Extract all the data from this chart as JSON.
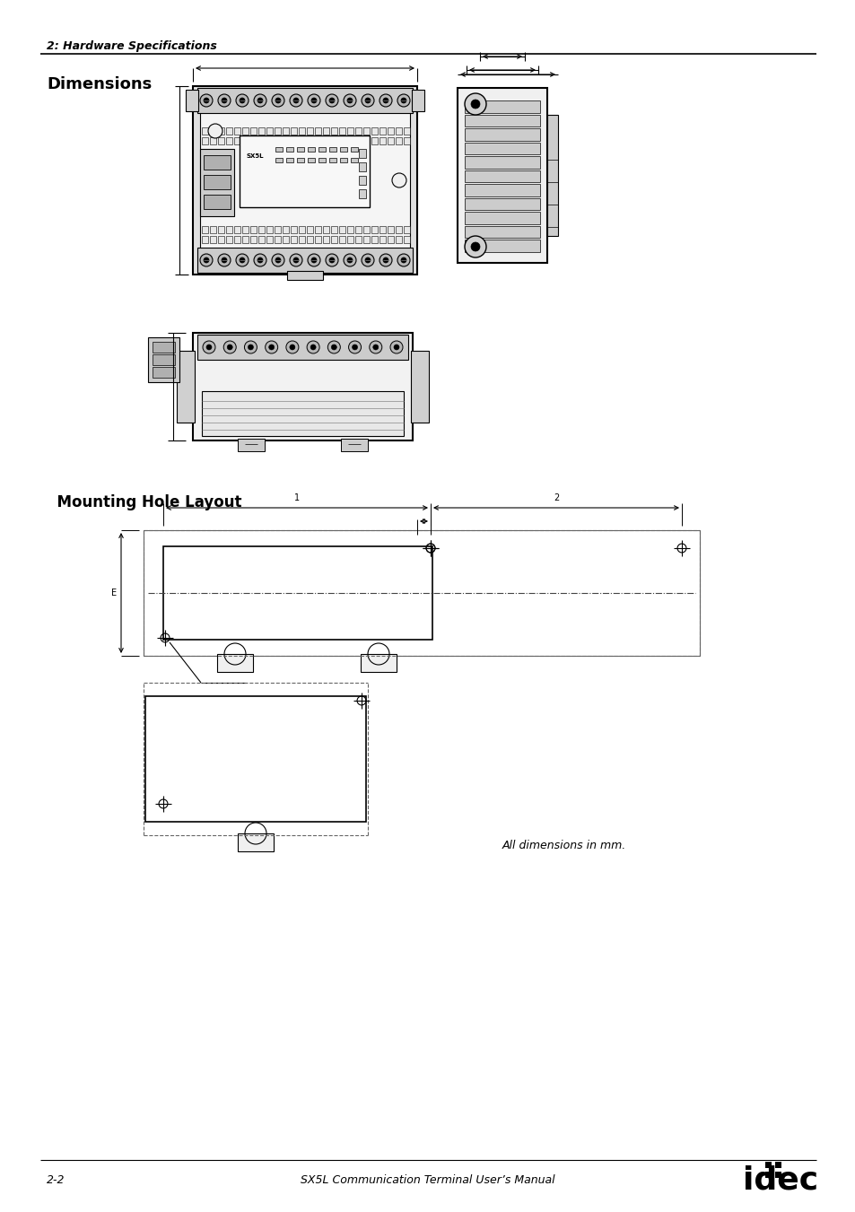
{
  "page_title": "2: Hardware Specifications",
  "section_title": "Dimensions",
  "section2_title": "  Mounting Hole Layout",
  "footer_left": "2-2",
  "footer_center": "SX5L Communication Terminal User’s Manual",
  "all_dims_text": "All dimensions in mm.",
  "bg_color": "#ffffff",
  "line_color": "#000000",
  "light_line": "#888888",
  "gray1": "#e0e0e0",
  "gray2": "#cccccc",
  "gray3": "#d0d0d0"
}
